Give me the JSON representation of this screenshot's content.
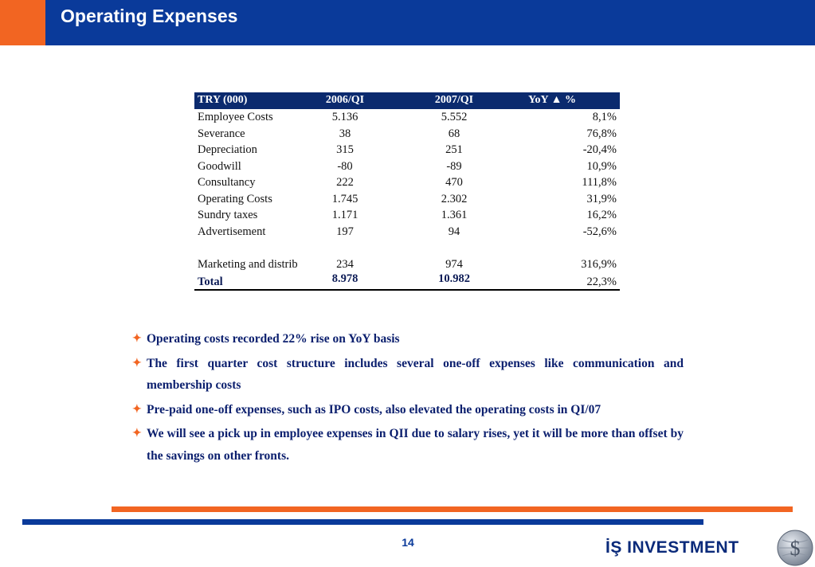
{
  "header": {
    "title": "Operating Expenses"
  },
  "table": {
    "columns": [
      "TRY (000)",
      "2006/QI",
      "2007/QI",
      "YoY ▲ %"
    ],
    "rows": [
      {
        "label": "Employee Costs",
        "q2006": "5.136",
        "q2007": "5.552",
        "yoy": "8,1%"
      },
      {
        "label": "Severance",
        "q2006": "38",
        "q2007": "68",
        "yoy": "76,8%"
      },
      {
        "label": "Depreciation",
        "q2006": "315",
        "q2007": "251",
        "yoy": "-20,4%"
      },
      {
        "label": "Goodwill",
        "q2006": "-80",
        "q2007": "-89",
        "yoy": "10,9%"
      },
      {
        "label": "Consultancy",
        "q2006": "222",
        "q2007": "470",
        "yoy": "111,8%"
      },
      {
        "label": "Operating Costs",
        "q2006": "1.745",
        "q2007": "2.302",
        "yoy": "31,9%"
      },
      {
        "label": "Sundry taxes",
        "q2006": "1.171",
        "q2007": "1.361",
        "yoy": "16,2%"
      },
      {
        "label": "Advertisement",
        "q2006": "197",
        "q2007": "94",
        "yoy": "-52,6%"
      },
      {
        "label": "",
        "q2006": "",
        "q2007": "",
        "yoy": ""
      },
      {
        "label": "Marketing and distribution",
        "q2006": "234",
        "q2007": "974",
        "yoy": "316,9%"
      }
    ],
    "total": {
      "label": "Total",
      "q2006": "8.978",
      "q2007": "10.982",
      "yoy": "22,3%"
    }
  },
  "bullets": [
    "Operating costs recorded 22% rise on YoY basis",
    "The first quarter cost structure includes several one-off expenses like communication and membership costs",
    "Pre-paid one-off expenses, such as IPO costs, also elevated the operating costs in QI/07",
    "We will see a pick up in employee expenses in QII due to salary rises, yet it will be more than offset by the savings on other fronts."
  ],
  "bullet_icon": "four-point-star-icon",
  "footer": {
    "page_number": "14",
    "logo_text": "İŞ INVESTMENT",
    "logo_icon": "dollar-globe-icon"
  },
  "colors": {
    "brand_blue": "#0a3a9a",
    "brand_orange": "#f26522",
    "table_header": "#0b2a6e",
    "bullet_text": "#0b1f6e"
  }
}
